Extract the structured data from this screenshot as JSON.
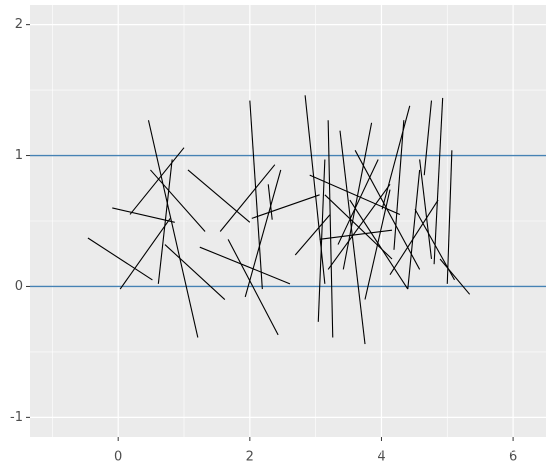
{
  "chart_data": {
    "type": "segment",
    "xlim": [
      -1.34,
      6.5
    ],
    "ylim": [
      -1.15,
      2.15
    ],
    "xticks": [
      0,
      2,
      4,
      6
    ],
    "yticks": [
      -1,
      0,
      1,
      2
    ],
    "xminor": [
      -1,
      1,
      3,
      5
    ],
    "yminor": [
      -0.5,
      0.5,
      1.5
    ],
    "grid": true,
    "panel_color": "#ebebeb",
    "grid_color": "#ffffff",
    "hlines": [
      0,
      1
    ],
    "hline_color": "#4682b4",
    "color": "#000000",
    "watermark": "https://blog.csdn.net/qq_19600291",
    "segments": [
      {
        "x": [
          -0.46,
          0.52
        ],
        "y": [
          0.37,
          0.05
        ]
      },
      {
        "x": [
          -0.09,
          0.86
        ],
        "y": [
          0.6,
          0.49
        ]
      },
      {
        "x": [
          0.03,
          0.79
        ],
        "y": [
          -0.02,
          0.52
        ]
      },
      {
        "x": [
          0.46,
          1.21
        ],
        "y": [
          1.27,
          -0.39
        ]
      },
      {
        "x": [
          0.61,
          0.82
        ],
        "y": [
          0.02,
          0.97
        ]
      },
      {
        "x": [
          0.18,
          1.0
        ],
        "y": [
          0.55,
          1.06
        ]
      },
      {
        "x": [
          0.49,
          1.32
        ],
        "y": [
          0.89,
          0.42
        ]
      },
      {
        "x": [
          0.71,
          1.62
        ],
        "y": [
          0.32,
          -0.1
        ]
      },
      {
        "x": [
          1.06,
          2.0
        ],
        "y": [
          0.89,
          0.49
        ]
      },
      {
        "x": [
          1.55,
          2.38
        ],
        "y": [
          0.42,
          0.93
        ]
      },
      {
        "x": [
          1.24,
          2.61
        ],
        "y": [
          0.3,
          0.02
        ]
      },
      {
        "x": [
          1.67,
          2.43
        ],
        "y": [
          0.36,
          -0.37
        ]
      },
      {
        "x": [
          2.0,
          2.19
        ],
        "y": [
          1.42,
          -0.02
        ]
      },
      {
        "x": [
          1.93,
          2.47
        ],
        "y": [
          -0.08,
          0.89
        ]
      },
      {
        "x": [
          2.03,
          3.06
        ],
        "y": [
          0.52,
          0.7
        ]
      },
      {
        "x": [
          2.28,
          2.34
        ],
        "y": [
          0.78,
          0.51
        ]
      },
      {
        "x": [
          2.69,
          3.22
        ],
        "y": [
          0.24,
          0.55
        ]
      },
      {
        "x": [
          2.84,
          3.14
        ],
        "y": [
          1.46,
          0.02
        ]
      },
      {
        "x": [
          3.04,
          3.14
        ],
        "y": [
          -0.27,
          0.97
        ]
      },
      {
        "x": [
          2.91,
          4.28
        ],
        "y": [
          0.85,
          0.55
        ]
      },
      {
        "x": [
          3.19,
          3.26
        ],
        "y": [
          1.27,
          -0.39
        ]
      },
      {
        "x": [
          3.37,
          3.75
        ],
        "y": [
          1.19,
          -0.44
        ]
      },
      {
        "x": [
          3.19,
          4.13
        ],
        "y": [
          0.13,
          0.78
        ]
      },
      {
        "x": [
          3.34,
          3.95
        ],
        "y": [
          0.32,
          0.97
        ]
      },
      {
        "x": [
          3.42,
          3.85
        ],
        "y": [
          0.13,
          1.25
        ]
      },
      {
        "x": [
          3.06,
          4.16
        ],
        "y": [
          0.36,
          0.43
        ]
      },
      {
        "x": [
          3.52,
          4.4
        ],
        "y": [
          0.66,
          -0.02
        ]
      },
      {
        "x": [
          3.6,
          4.58
        ],
        "y": [
          1.04,
          0.13
        ]
      },
      {
        "x": [
          3.14,
          4.16
        ],
        "y": [
          0.7,
          0.21
        ]
      },
      {
        "x": [
          3.75,
          4.13
        ],
        "y": [
          -0.1,
          0.74
        ]
      },
      {
        "x": [
          4.01,
          4.43
        ],
        "y": [
          0.59,
          1.38
        ]
      },
      {
        "x": [
          4.19,
          4.34
        ],
        "y": [
          0.28,
          1.27
        ]
      },
      {
        "x": [
          4.4,
          4.58
        ],
        "y": [
          -0.02,
          0.89
        ]
      },
      {
        "x": [
          4.13,
          4.86
        ],
        "y": [
          0.09,
          0.66
        ]
      },
      {
        "x": [
          4.58,
          4.76
        ],
        "y": [
          0.97,
          0.21
        ]
      },
      {
        "x": [
          4.65,
          4.76
        ],
        "y": [
          0.85,
          1.42
        ]
      },
      {
        "x": [
          4.8,
          4.93
        ],
        "y": [
          0.17,
          1.44
        ]
      },
      {
        "x": [
          4.89,
          5.34
        ],
        "y": [
          0.21,
          -0.06
        ]
      },
      {
        "x": [
          5.0,
          5.07
        ],
        "y": [
          0.02,
          1.04
        ]
      },
      {
        "x": [
          4.51,
          5.11
        ],
        "y": [
          0.59,
          0.05
        ]
      }
    ]
  }
}
